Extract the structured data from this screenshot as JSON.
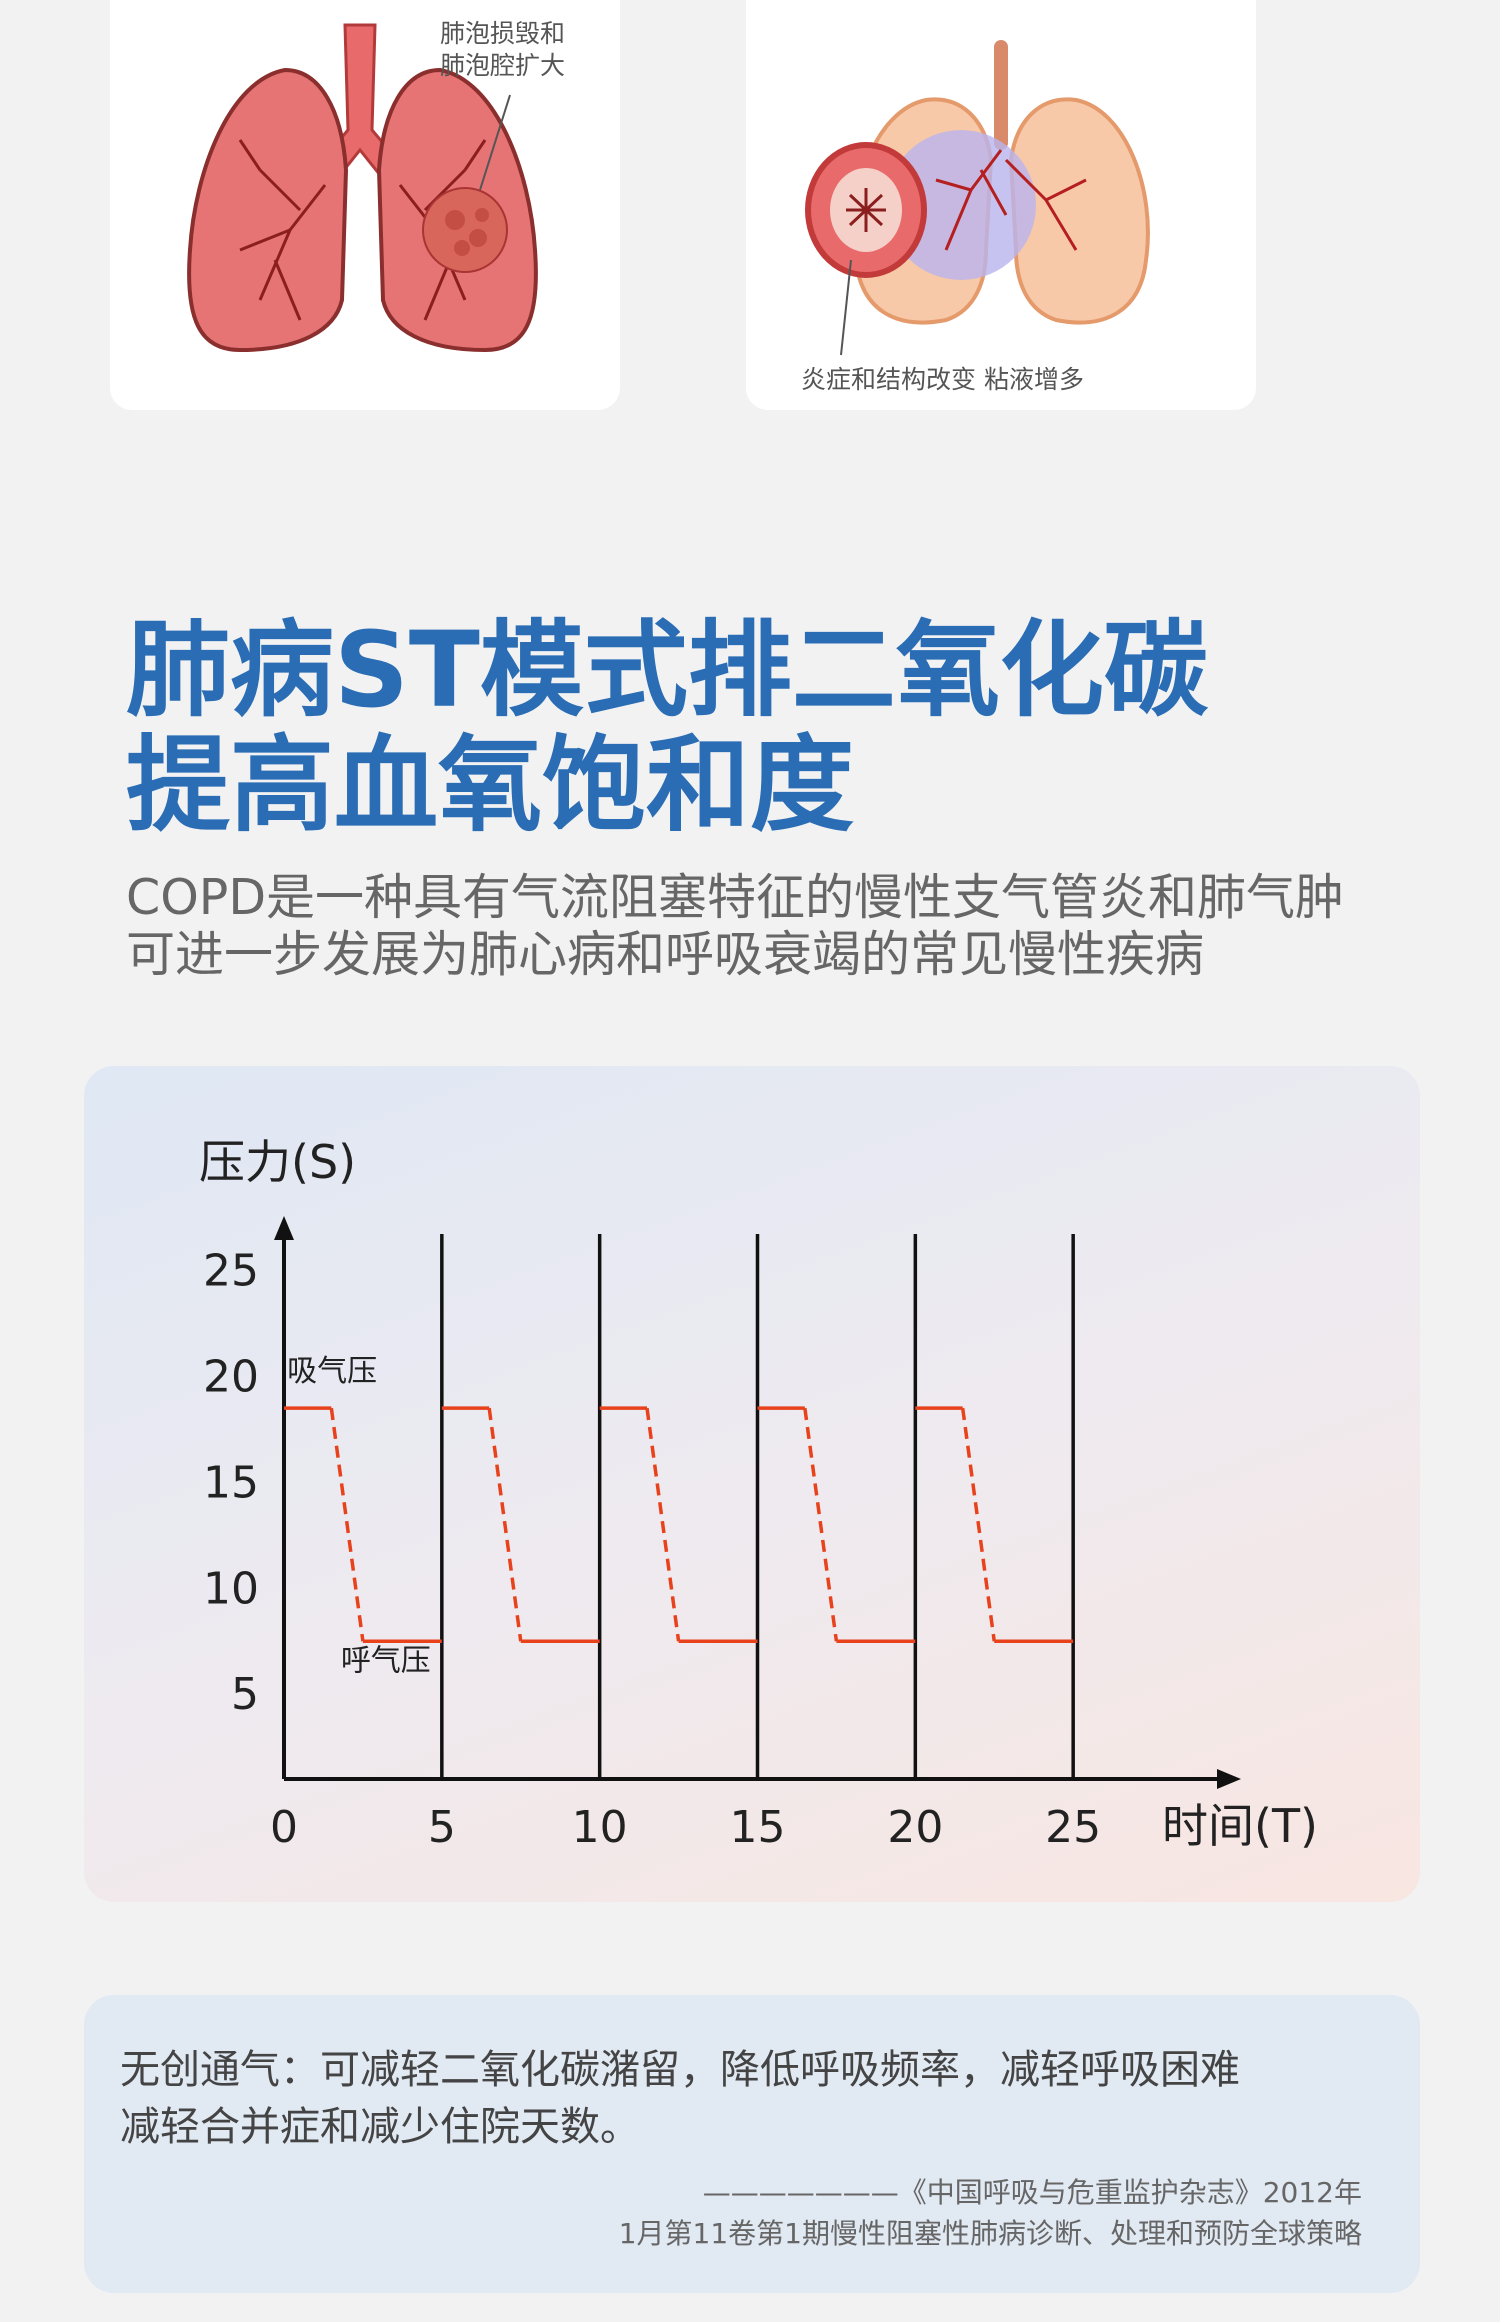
{
  "images": {
    "left_label_line1": "肺泡损毁和",
    "left_label_line2": "肺泡腔扩大",
    "right_label": "炎症和结构改变 粘液增多"
  },
  "headline": {
    "line1": "肺病ST模式排二氧化碳",
    "line2": "提高血氧饱和度"
  },
  "subtitle": {
    "line1": "COPD是一种具有气流阻塞特征的慢性支气管炎和肺气肿",
    "line2": "可进一步发展为肺心病和呼吸衰竭的常见慢性疾病"
  },
  "chart_data": {
    "type": "line",
    "xlabel": "时间(T)",
    "ylabel": "压力(S)",
    "x_ticks": [
      "0",
      "5",
      "10",
      "15",
      "20",
      "25"
    ],
    "y_ticks": [
      "5",
      "10",
      "15",
      "20",
      "25"
    ],
    "xlim": [
      0,
      30
    ],
    "ylim": [
      1,
      27
    ],
    "cycle_markers_x": [
      5,
      10,
      15,
      20,
      25
    ],
    "annotations": {
      "inhale": "吸气压",
      "exhale": "呼气压"
    },
    "series": [
      {
        "color": "#e8421c",
        "points": [
          [
            0,
            18.5
          ],
          [
            1.5,
            18.5
          ],
          [
            2.5,
            7.5
          ],
          [
            5,
            7.5
          ],
          [
            5,
            18.5
          ],
          [
            6.5,
            18.5
          ],
          [
            7.5,
            7.5
          ],
          [
            10,
            7.5
          ],
          [
            10,
            18.5
          ],
          [
            11.5,
            18.5
          ],
          [
            12.5,
            7.5
          ],
          [
            15,
            7.5
          ],
          [
            15,
            18.5
          ],
          [
            16.5,
            18.5
          ],
          [
            17.5,
            7.5
          ],
          [
            20,
            7.5
          ],
          [
            20,
            18.5
          ],
          [
            21.5,
            18.5
          ],
          [
            22.5,
            7.5
          ],
          [
            25,
            7.5
          ]
        ]
      }
    ]
  },
  "note": {
    "line1": "无创通气：可减轻二氧化碳潴留，降低呼吸频率，减轻呼吸困难",
    "line2": "减轻合并症和减少住院天数。",
    "citation_line1": "———————《中国呼吸与危重监护杂志》2012年",
    "citation_line2": "1月第11卷第1期慢性阻塞性肺病诊断、处理和预防全球策略"
  }
}
